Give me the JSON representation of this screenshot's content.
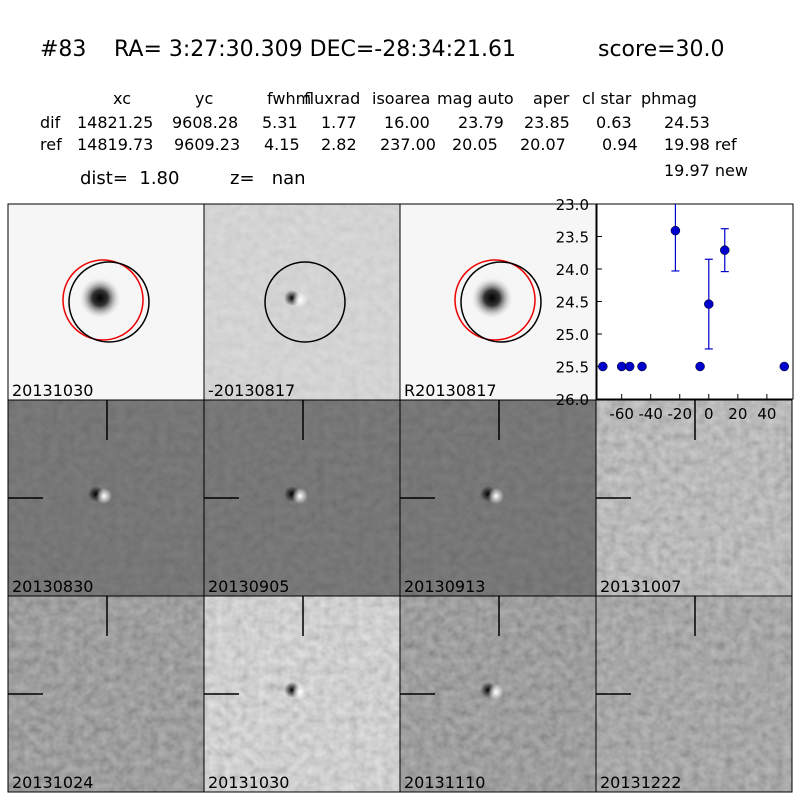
{
  "header": {
    "id": "#83",
    "coords": "RA= 3:27:30.309 DEC=-28:34:21.61",
    "score": "score=30.0"
  },
  "table": {
    "columns": [
      "xc",
      "yc",
      "fwhm",
      "fluxrad",
      "isoarea",
      "mag auto",
      "aper",
      "cl star",
      "phmag"
    ],
    "rows": [
      {
        "label": "dif",
        "cells": [
          "14821.25",
          "9608.28",
          "5.31",
          "1.77",
          "16.00",
          "23.79",
          "23.85",
          "0.63",
          "24.53"
        ]
      },
      {
        "label": "ref",
        "cells": [
          "14819.73",
          "9609.23",
          "4.15",
          "2.82",
          "237.00",
          "20.05",
          "20.07",
          "0.94",
          "19.98 ref"
        ]
      }
    ],
    "note": "19.97 new"
  },
  "summary": {
    "dist": "dist=  1.80",
    "z": "z=   nan"
  },
  "panels": [
    {
      "label": "20131030",
      "color": "#000000"
    },
    {
      "label": "-20130817",
      "color": "#000000"
    },
    {
      "label": "R20130817",
      "color": "#000000"
    },
    {
      "label": "20130830",
      "color": "#000000"
    },
    {
      "label": "20130905",
      "color": "#000000"
    },
    {
      "label": "20130913",
      "color": "#000000"
    },
    {
      "label": "20131007",
      "color": "#000000"
    },
    {
      "label": "20131024",
      "color": "#000000"
    },
    {
      "label": "20131030",
      "color": "#ff0000"
    },
    {
      "label": "20131110",
      "color": "#000000"
    },
    {
      "label": "20131222",
      "color": "#000000"
    }
  ],
  "chart_data": {
    "type": "scatter",
    "color": "#0000cc",
    "x": [
      -73,
      -60,
      -54.5,
      -46,
      -23,
      -6,
      0,
      11,
      52
    ],
    "values": [
      25.5,
      25.5,
      25.5,
      25.5,
      23.41,
      25.5,
      24.54,
      23.71,
      25.5
    ],
    "errors": [
      null,
      null,
      null,
      null,
      0.62,
      null,
      0.69,
      0.33,
      null
    ],
    "xlim": [
      -77,
      58
    ],
    "ylim": [
      26.0,
      23.0
    ],
    "xticks": [
      -60,
      -40,
      -20,
      0,
      20,
      40
    ],
    "yticks": [
      {
        "value": 23,
        "label": "23.0"
      },
      {
        "value": 23.5,
        "label": "23.5"
      },
      {
        "value": 24,
        "label": "24.0"
      },
      {
        "value": 24.5,
        "label": "24.5"
      },
      {
        "value": 25,
        "label": "25.0"
      },
      {
        "value": 25.5,
        "label": "25.5"
      },
      {
        "value": 26,
        "label": "26.0"
      }
    ]
  }
}
